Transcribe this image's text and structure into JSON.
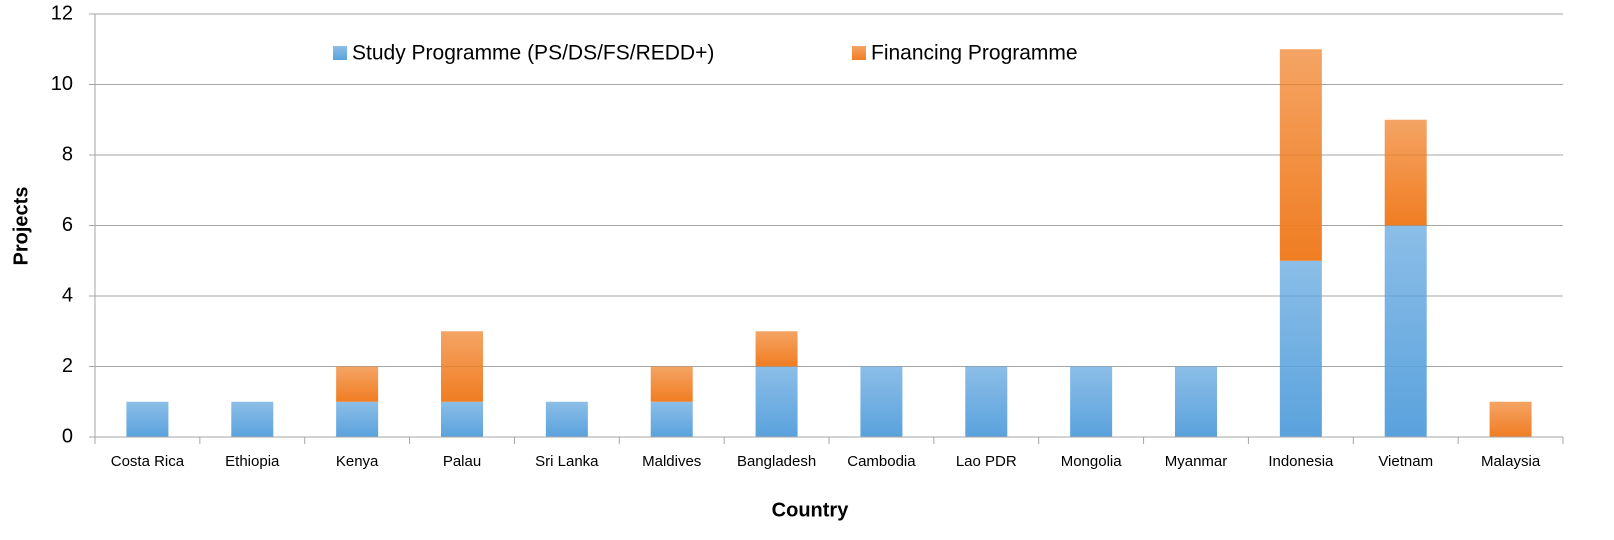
{
  "chart_data": {
    "type": "bar",
    "stacked": true,
    "xlabel": "Country",
    "ylabel": "Projects",
    "categories": [
      "Costa Rica",
      "Ethiopia",
      "Kenya",
      "Palau",
      "Sri Lanka",
      "Maldives",
      "Bangladesh",
      "Cambodia",
      "Lao PDR",
      "Mongolia",
      "Myanmar",
      "Indonesia",
      "Vietnam",
      "Malaysia"
    ],
    "series": [
      {
        "name": "Study Programme (PS/DS/FS/REDD+)",
        "color": "#5aa2dd",
        "values": [
          1,
          1,
          1,
          1,
          1,
          1,
          2,
          2,
          2,
          2,
          2,
          5,
          6,
          0
        ]
      },
      {
        "name": "Financing Programme",
        "color": "#f07d22",
        "values": [
          0,
          0,
          1,
          2,
          0,
          1,
          1,
          0,
          0,
          0,
          0,
          6,
          3,
          1
        ]
      }
    ],
    "ylim": [
      0,
      12
    ],
    "yticks": [
      0,
      2,
      4,
      6,
      8,
      10,
      12
    ],
    "grid": true,
    "legend": "top"
  }
}
